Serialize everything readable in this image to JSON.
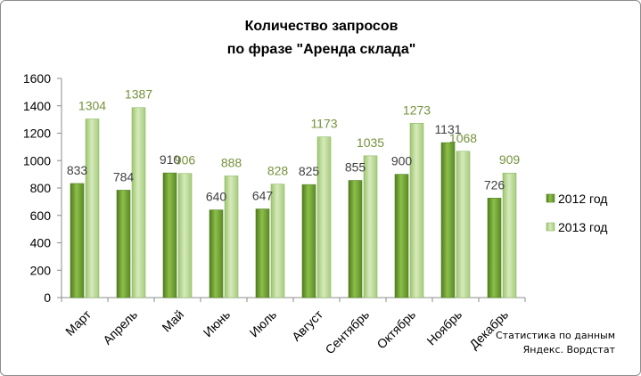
{
  "chart_data": {
    "type": "bar",
    "title_line1": "Количество запросов",
    "title_line2": "по фразе \"Аренда склада\"",
    "categories": [
      "Март",
      "Апрель",
      "Май",
      "Июнь",
      "Июль",
      "Август",
      "Сентябрь",
      "Октябрь",
      "Ноябрь",
      "Декабрь"
    ],
    "series": [
      {
        "name": "2012 год",
        "values": [
          833,
          784,
          910,
          640,
          647,
          825,
          855,
          900,
          1131,
          726
        ],
        "color": "#76a13a",
        "label_color": "#404040"
      },
      {
        "name": "2013 год",
        "values": [
          1304,
          1387,
          906,
          888,
          828,
          1173,
          1035,
          1273,
          1068,
          909
        ],
        "color": "#b3d68c",
        "label_color": "#76923c"
      }
    ],
    "ylim": [
      0,
      1600
    ],
    "yticks": [
      0,
      200,
      400,
      600,
      800,
      1000,
      1200,
      1400,
      1600
    ],
    "grid": false,
    "legend_position": "right"
  },
  "source_note": {
    "line1": "Статистика по данным",
    "line2": "Яндекс. Вордстат"
  }
}
